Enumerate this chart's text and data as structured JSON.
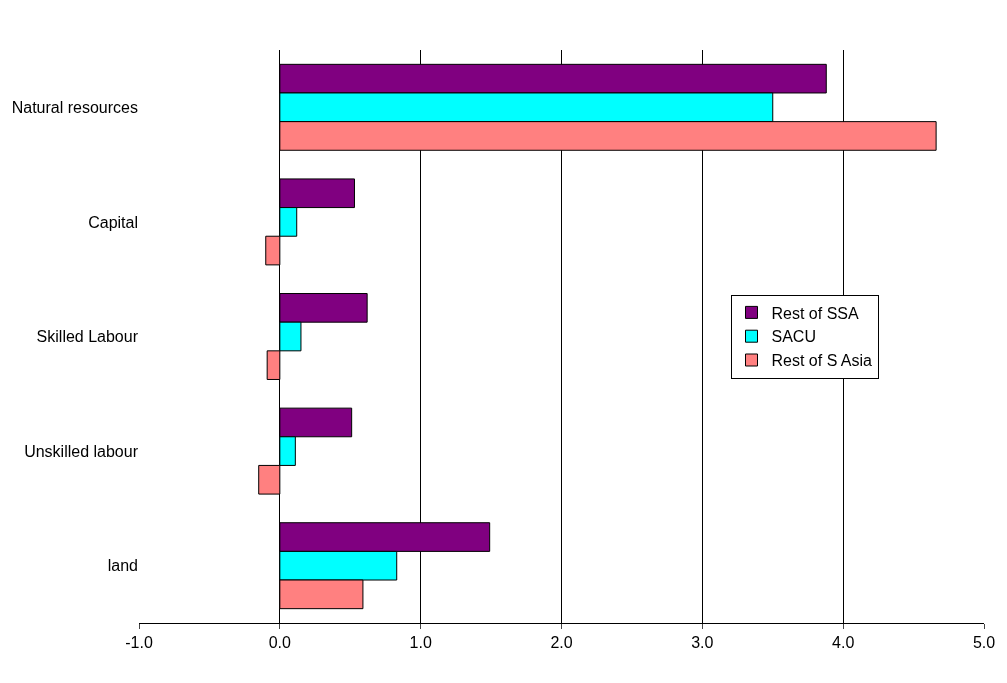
{
  "chart_data": {
    "type": "bar",
    "orientation": "horizontal",
    "categories": [
      "Natural resources",
      "Capital",
      "Skilled Labour",
      "Unskilled labour",
      "land"
    ],
    "series": [
      {
        "name": "Rest of SSA",
        "color": "#800080",
        "values": [
          3.88,
          0.53,
          0.62,
          0.51,
          1.49
        ]
      },
      {
        "name": "SACU",
        "color": "#00ffff",
        "values": [
          3.5,
          0.12,
          0.15,
          0.11,
          0.83
        ]
      },
      {
        "name": "Rest of S Asia",
        "color": "#ff8080",
        "values": [
          4.66,
          -0.1,
          -0.09,
          -0.15,
          0.59
        ]
      }
    ],
    "xlim": [
      -1,
      5
    ],
    "xticks": [
      {
        "value": -1,
        "label": "-1.0"
      },
      {
        "value": 0,
        "label": "0.0"
      },
      {
        "value": 1,
        "label": "1.0"
      },
      {
        "value": 2,
        "label": "2.0"
      },
      {
        "value": 3,
        "label": "3.0"
      },
      {
        "value": 4,
        "label": "4.0"
      },
      {
        "value": 5,
        "label": "5.0"
      }
    ],
    "grid": "x",
    "legend": "right"
  }
}
